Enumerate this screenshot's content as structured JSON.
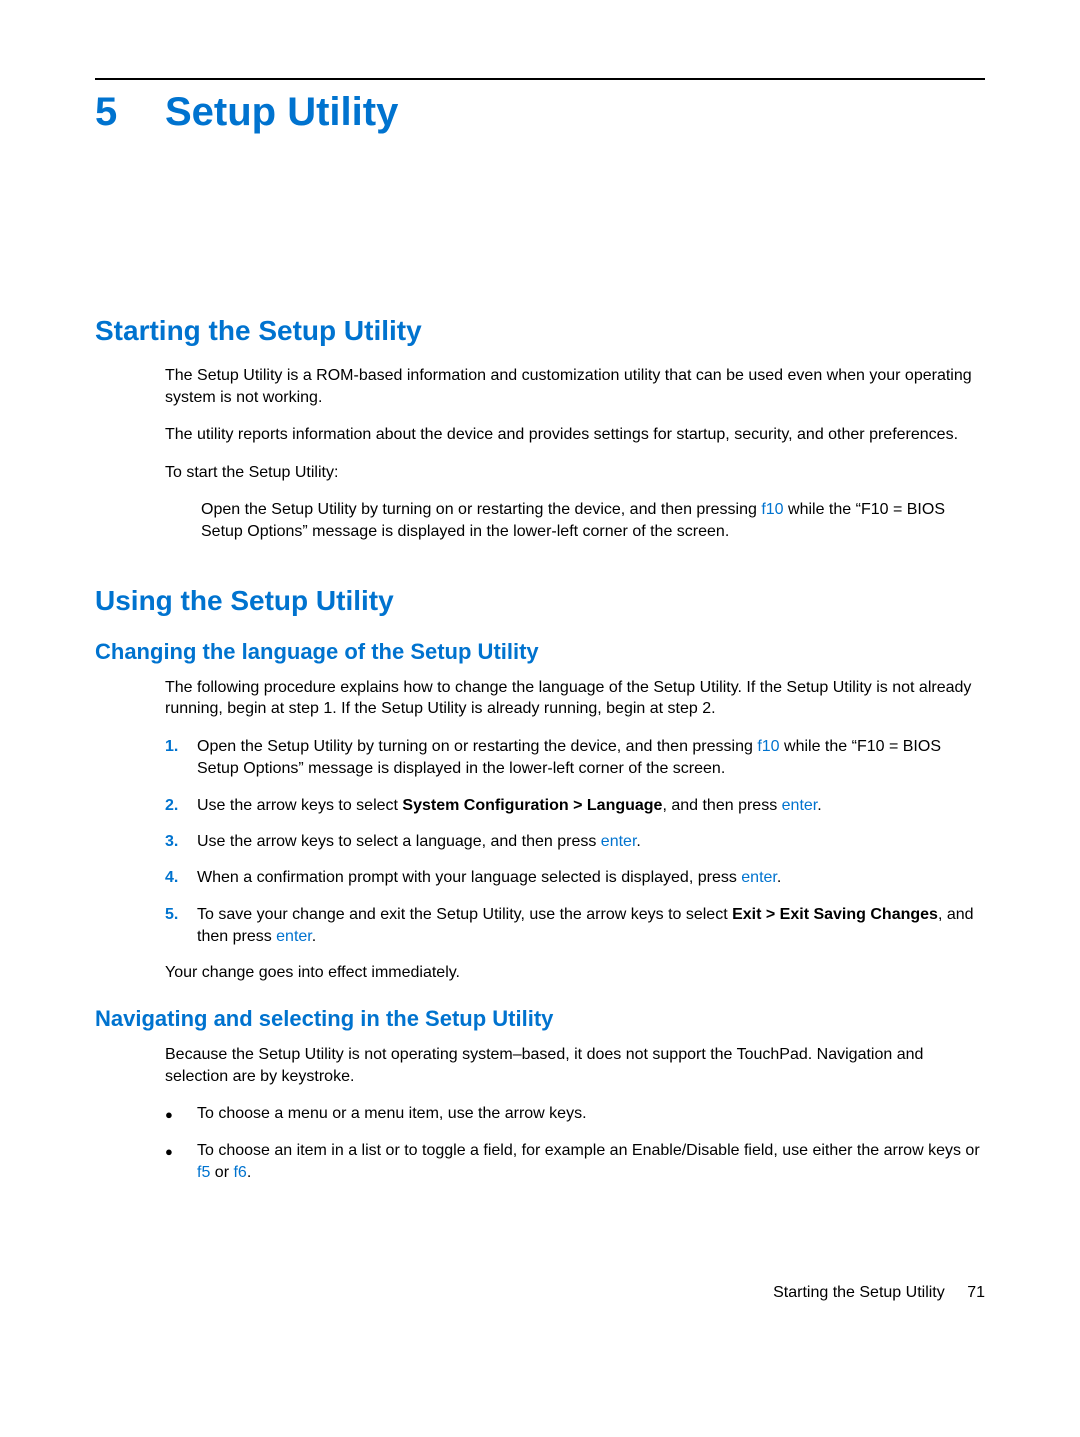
{
  "colors": {
    "accent": "#0073cf",
    "text": "#000000",
    "background": "#ffffff"
  },
  "typography": {
    "body_fontsize": 16,
    "chapter_fontsize": 40,
    "h1_fontsize": 28,
    "h2_fontsize": 22,
    "font_family": "Arial"
  },
  "chapter": {
    "number": "5",
    "title": "Setup Utility"
  },
  "section1": {
    "heading": "Starting the Setup Utility",
    "p1": "The Setup Utility is a ROM-based information and customization utility that can be used even when your operating system is not working.",
    "p2": "The utility reports information about the device and provides settings for startup, security, and other preferences.",
    "p3": "To start the Setup Utility:",
    "open_pre": "Open the Setup Utility by turning on or restarting the device, and then pressing ",
    "open_key": "f10",
    "open_post": " while the “F10 = BIOS Setup Options” message is displayed in the lower-left corner of the screen."
  },
  "section2": {
    "heading": "Using the Setup Utility",
    "sub1": {
      "heading": "Changing the language of the Setup Utility",
      "intro": "The following procedure explains how to change the language of the Setup Utility. If the Setup Utility is not already running, begin at step 1. If the Setup Utility is already running, begin at step 2.",
      "steps": {
        "s1": {
          "num": "1.",
          "pre": "Open the Setup Utility by turning on or restarting the device, and then pressing ",
          "key": "f10",
          "post": " while the “F10 = BIOS Setup Options” message is displayed in the lower-left corner of the screen."
        },
        "s2": {
          "num": "2.",
          "pre": "Use the arrow keys to select ",
          "bold": "System Configuration > Language",
          "mid": ", and then press ",
          "key": "enter",
          "post": "."
        },
        "s3": {
          "num": "3.",
          "pre": "Use the arrow keys to select a language, and then press ",
          "key": "enter",
          "post": "."
        },
        "s4": {
          "num": "4.",
          "pre": "When a confirmation prompt with your language selected is displayed, press ",
          "key": "enter",
          "post": "."
        },
        "s5": {
          "num": "5.",
          "pre": "To save your change and exit the Setup Utility, use the arrow keys to select ",
          "bold": "Exit > Exit Saving Changes",
          "mid": ", and then press ",
          "key": "enter",
          "post": "."
        }
      },
      "outro": "Your change goes into effect immediately."
    },
    "sub2": {
      "heading": "Navigating and selecting in the Setup Utility",
      "intro": "Because the Setup Utility is not operating system–based, it does not support the TouchPad. Navigation and selection are by keystroke.",
      "b1": "To choose a menu or a menu item, use the arrow keys.",
      "b2": {
        "pre": "To choose an item in a list or to toggle a field, for example an Enable/Disable field, use either the arrow keys or ",
        "key1": "f5",
        "mid": " or ",
        "key2": "f6",
        "post": "."
      }
    }
  },
  "footer": {
    "label": "Starting the Setup Utility",
    "page": "71"
  }
}
